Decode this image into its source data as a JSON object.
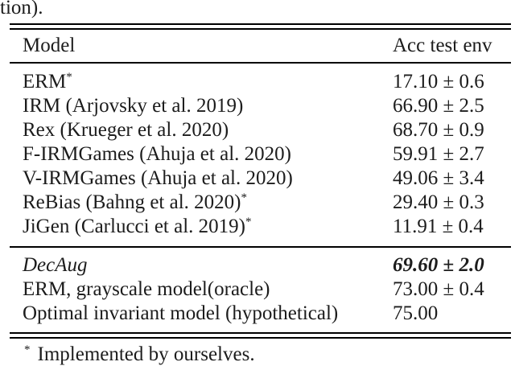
{
  "caption_fragment": "tion).",
  "table": {
    "header": {
      "model": "Model",
      "value": "Acc test env"
    },
    "sections": [
      {
        "rows": [
          {
            "model": "ERM",
            "sup": "*",
            "value": "17.10 ± 0.6"
          },
          {
            "model": "IRM (Arjovsky et al. 2019)",
            "value": "66.90 ± 2.5"
          },
          {
            "model": "Rex (Krueger et al. 2020)",
            "value": "68.70 ± 0.9"
          },
          {
            "model": "F-IRMGames (Ahuja et al. 2020)",
            "value": "59.91 ± 2.7"
          },
          {
            "model": "V-IRMGames (Ahuja et al. 2020)",
            "value": "49.06 ± 3.4"
          },
          {
            "model": "ReBias (Bahng et al. 2020)",
            "sup": "*",
            "value": "29.40 ± 0.3"
          },
          {
            "model": "JiGen (Carlucci et al. 2019)",
            "sup": "*",
            "value": "11.91 ± 0.4"
          }
        ]
      },
      {
        "rows": [
          {
            "model": "DecAug",
            "value": "69.60 ± 2.0",
            "emphasis": "bold-italic"
          },
          {
            "model": "ERM, grayscale model(oracle)",
            "value": "73.00 ± 0.4"
          },
          {
            "model": "Optimal invariant model (hypothetical)",
            "value": "75.00"
          }
        ]
      }
    ],
    "footnote": {
      "marker": "*",
      "text": "Implemented by ourselves."
    }
  },
  "colors": {
    "text": "#1c1c1c",
    "rule": "#000000",
    "background": "#ffffff"
  }
}
